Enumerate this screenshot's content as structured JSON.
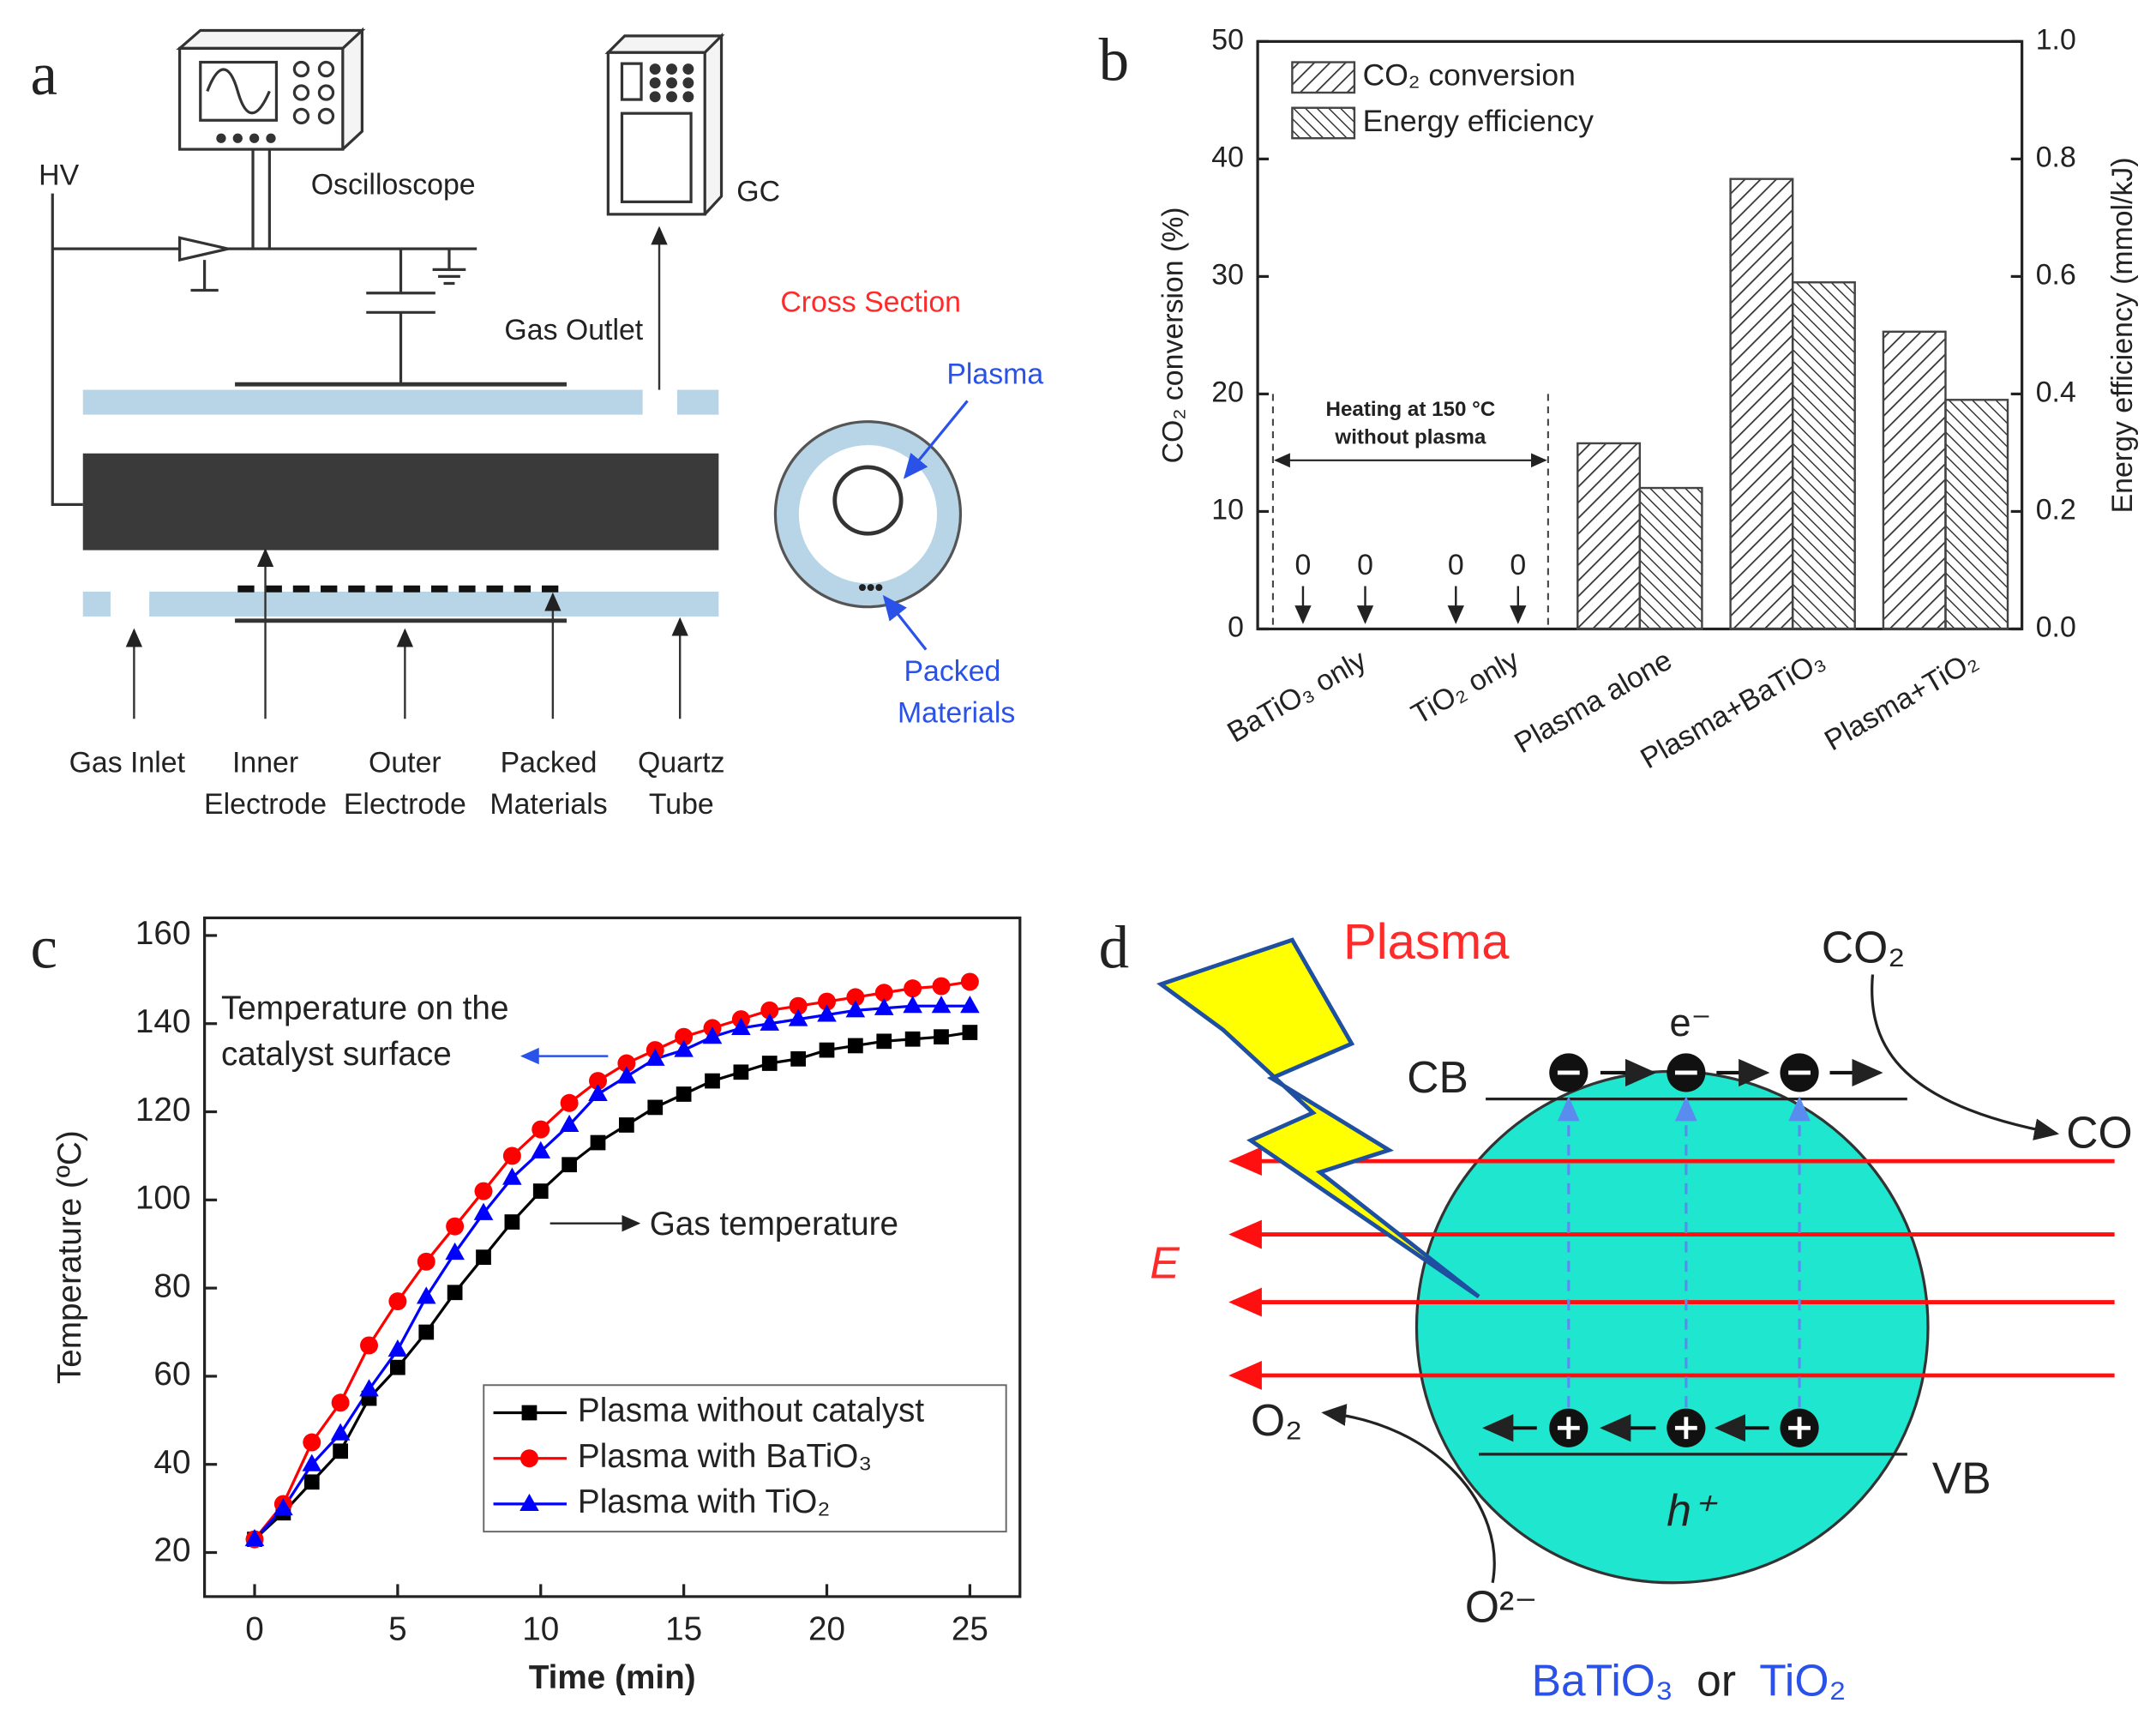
{
  "panel_labels": [
    "a",
    "b",
    "c",
    "d"
  ],
  "diagram_a": {
    "hv": "HV",
    "oscilloscope": "Oscilloscope",
    "gc": "GC",
    "gas_outlet": "Gas Outlet",
    "cross_section": "Cross Section",
    "plasma": "Plasma",
    "packed_materials_cs": [
      "Packed",
      "Materials"
    ],
    "bottom_labels": [
      [
        "Gas Inlet"
      ],
      [
        "Inner",
        "Electrode"
      ],
      [
        "Outer",
        "Electrode"
      ],
      [
        "Packed",
        "Materials"
      ],
      [
        "Quartz",
        "Tube"
      ]
    ]
  },
  "chart_data": [
    {
      "type": "bar",
      "categories": [
        "BaTiO₃ only",
        "TiO₂ only",
        "Plasma alone",
        "Plasma+BaTiO₃",
        "Plasma+TiO₂"
      ],
      "series": [
        {
          "name": "CO₂ conversion",
          "color": "#444444",
          "hatch": "/",
          "values": [
            0,
            0,
            15.8,
            38.3,
            25.3
          ]
        },
        {
          "name": "Energy efficiency",
          "color": "#444444",
          "hatch": "\\",
          "axis": "y2",
          "values": [
            0,
            0,
            0.24,
            0.59,
            0.39
          ]
        }
      ],
      "ylabel": "CO₂ conversion (%)",
      "y2label": "Energy efficiency (mmol/kJ)",
      "ylim": [
        0,
        50
      ],
      "yticks": [
        0,
        10,
        20,
        30,
        40,
        50
      ],
      "y2lim": [
        0,
        1
      ],
      "y2ticks": [
        {
          "value": 0,
          "label": "0.0"
        },
        0.2,
        0.4,
        0.6,
        0.8,
        {
          "value": 1,
          "label": "1.0"
        }
      ],
      "annotation": [
        "Heating at 150 °C",
        "without plasma"
      ],
      "legend": "upper left"
    },
    {
      "type": "line",
      "x": [
        0,
        1,
        2,
        3,
        4,
        5,
        6,
        7,
        8,
        9,
        10,
        11,
        12,
        13,
        14,
        15,
        16,
        17,
        18,
        19,
        20,
        21,
        22,
        23,
        24,
        25
      ],
      "series": [
        {
          "name": "Plasma without catalyst",
          "color": "#000000",
          "marker": "square",
          "values": [
            23,
            29,
            36,
            43,
            55,
            62,
            70,
            79,
            87,
            95,
            102,
            108,
            113,
            117,
            121,
            124,
            127,
            129,
            131,
            132,
            134,
            135,
            136,
            136.5,
            137,
            138
          ]
        },
        {
          "name": "Plasma with BaTiO₃",
          "color": "#ff0000",
          "marker": "circle",
          "values": [
            23,
            31,
            45,
            54,
            67,
            77,
            86,
            94,
            102,
            110,
            116,
            122,
            127,
            131,
            134,
            137,
            139,
            141,
            143,
            144,
            145,
            146,
            147,
            148,
            148.5,
            149.5
          ]
        },
        {
          "name": "Plasma with TiO₂",
          "color": "#0000ff",
          "marker": "triangle",
          "values": [
            23,
            30,
            40,
            47,
            57,
            66,
            78,
            88,
            97,
            105,
            111,
            117,
            124,
            128,
            132,
            134,
            137,
            139,
            140,
            141,
            142,
            143,
            143.5,
            144,
            144,
            144
          ]
        }
      ],
      "xlabel": "Time (min)",
      "ylabel": "Temperature (ºC)",
      "xlim": [
        -1.75,
        26.75
      ],
      "xticks": [
        0,
        5,
        10,
        15,
        20,
        25
      ],
      "ylim": [
        10,
        164
      ],
      "yticks": [
        20,
        40,
        60,
        80,
        100,
        120,
        140,
        160
      ],
      "annotations": [
        [
          "Temperature on the",
          "catalyst surface"
        ],
        [
          "Gas temperature"
        ]
      ],
      "legend": "lower right"
    }
  ],
  "diagram_d": {
    "plasma": "Plasma",
    "co2": "CO₂",
    "cb": "CB",
    "e": "e⁻",
    "co": "CO",
    "field": "E",
    "o2": "O₂",
    "vb": "VB",
    "h": "h⁺",
    "o2minus": "O²⁻",
    "material": [
      "BaTiO₃",
      "or",
      "TiO₂"
    ]
  }
}
